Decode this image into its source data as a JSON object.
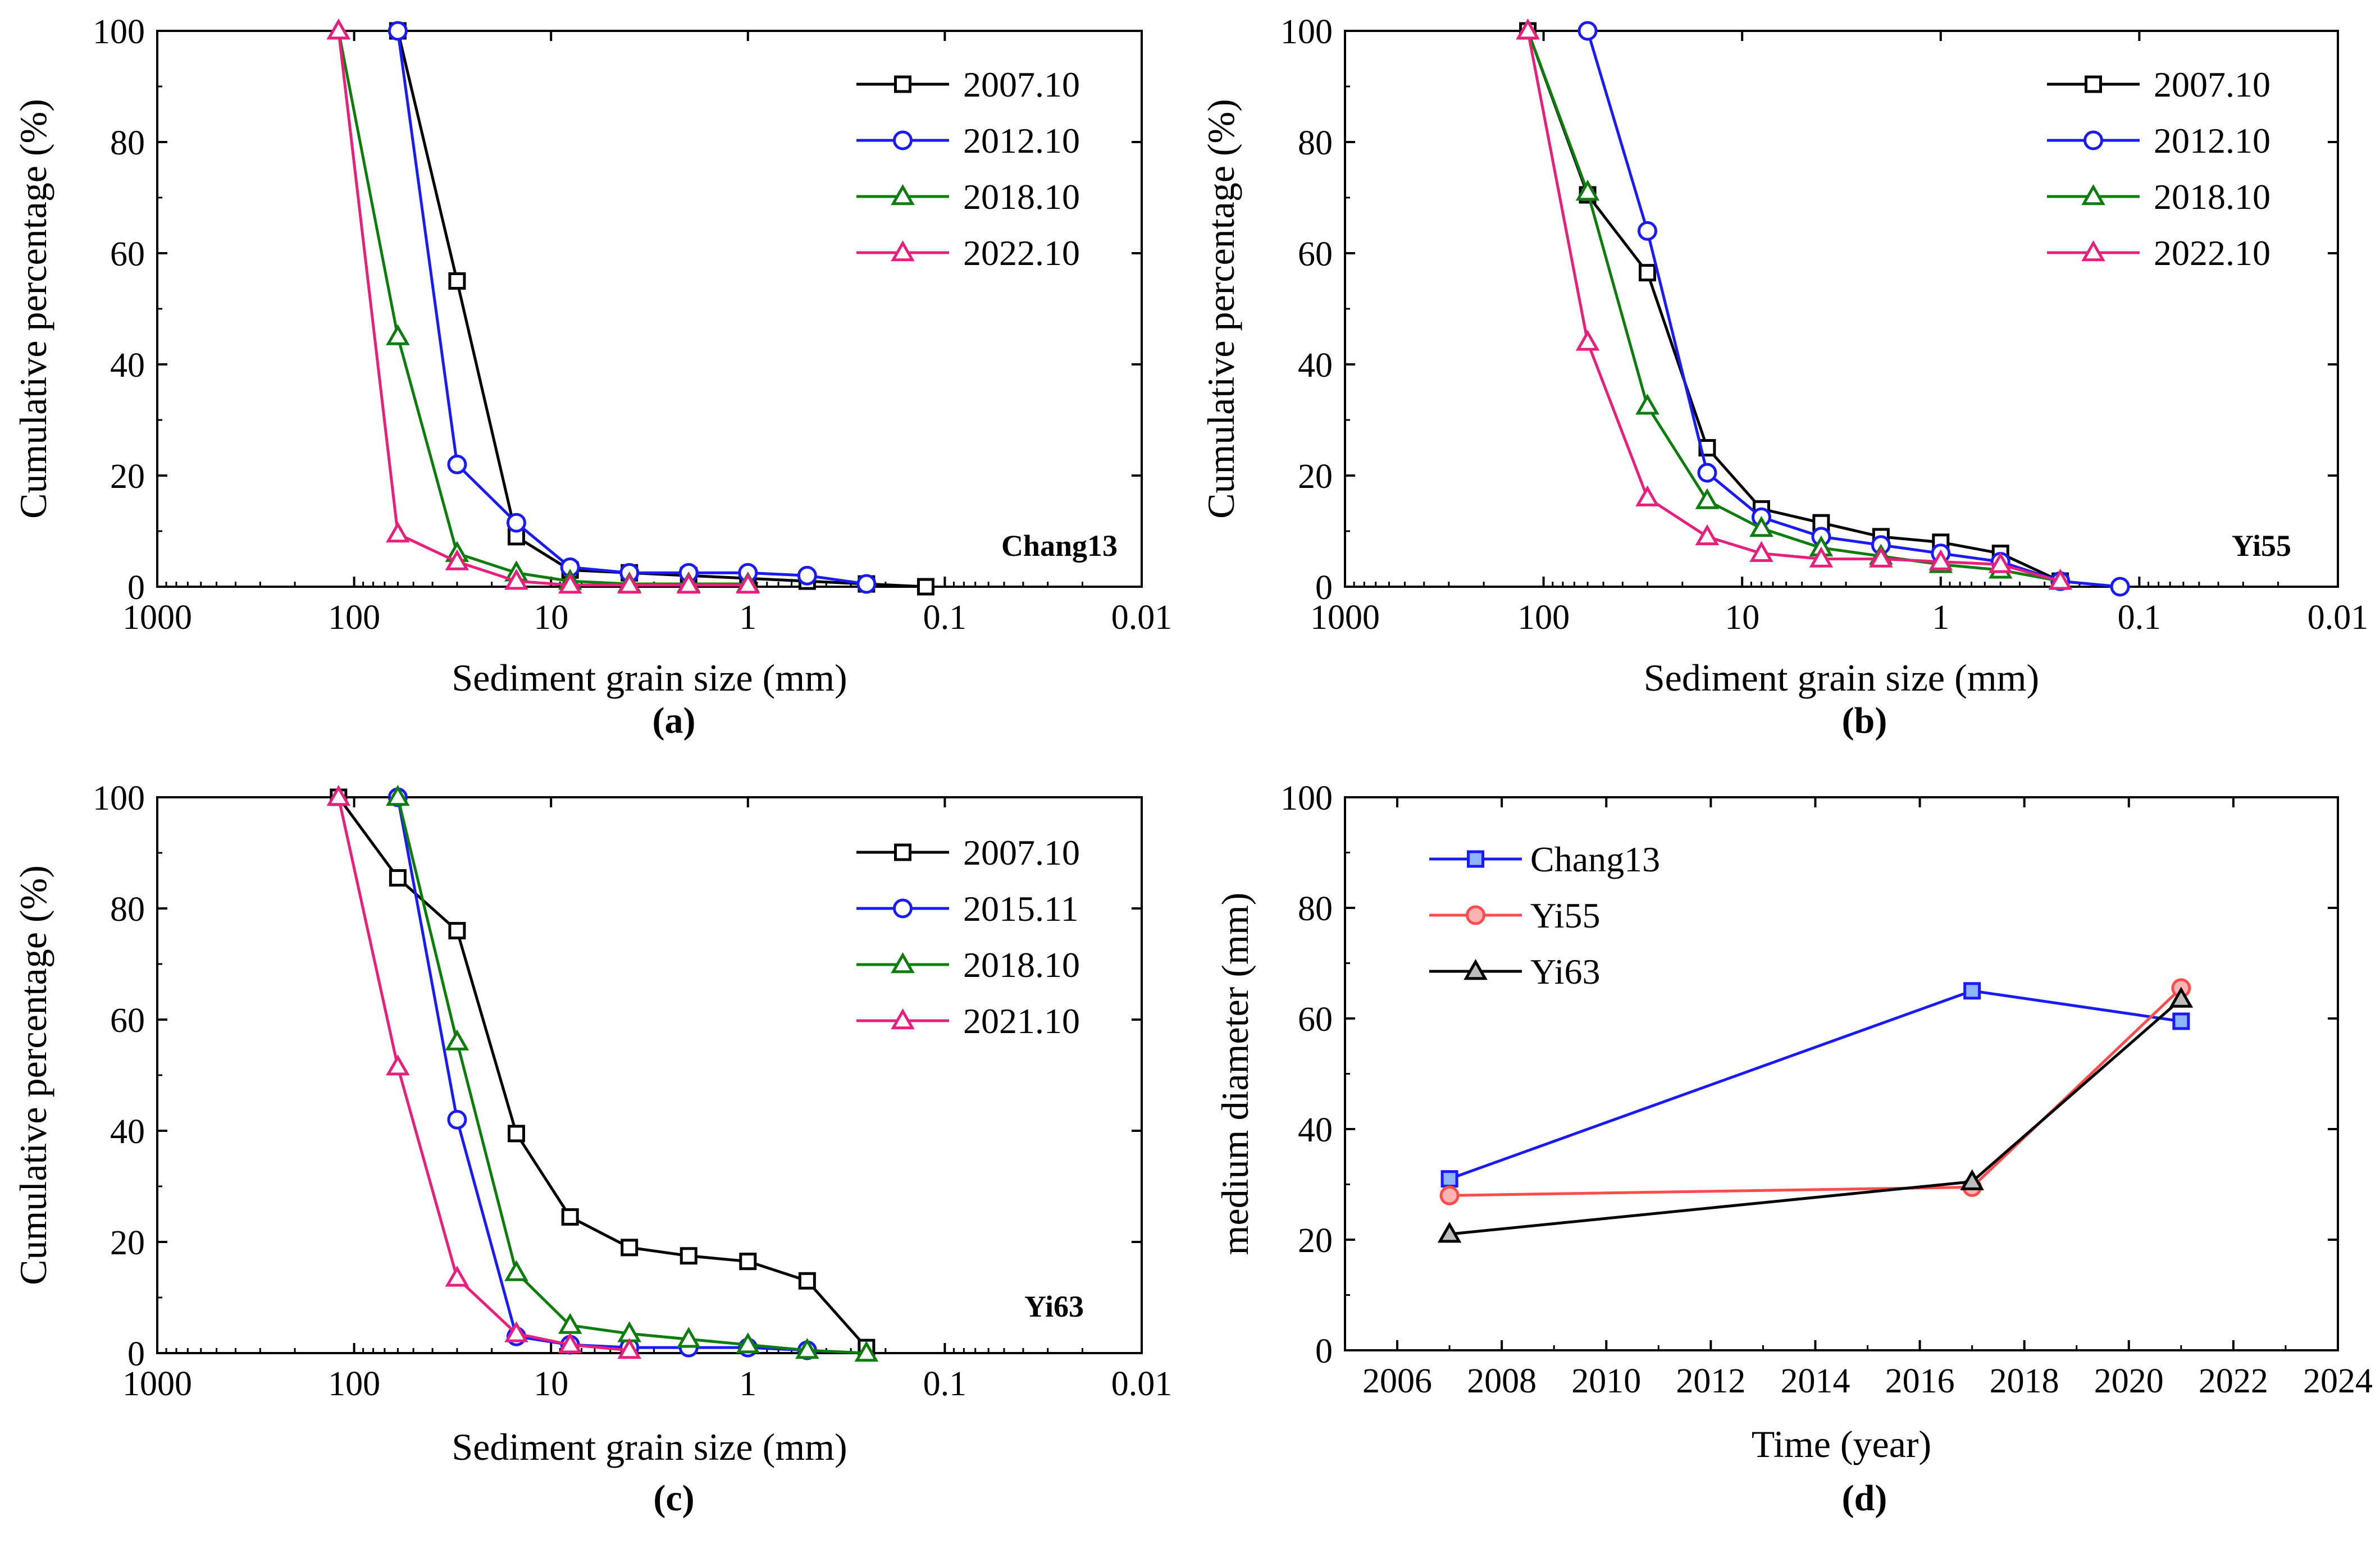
{
  "colors": {
    "black": "#000000",
    "blue": "#1a1aff",
    "green": "#0c7c0c",
    "pink": "#e8207c",
    "red": "#ff4d4d",
    "sq_fill_blue": "#8fb4ff",
    "circ_fill_red": "#ffb3b3",
    "tri_fill_gray": "#bdbdbd"
  },
  "chart_data": [
    {
      "id": "a",
      "type": "line",
      "panel_label": "(a)",
      "site": "Chang13",
      "xscale": "log",
      "x_reversed": true,
      "xlim": [
        1000,
        0.01
      ],
      "ylim": [
        0,
        100
      ],
      "xticks": [
        1000,
        100,
        10,
        1,
        0.1,
        0.01
      ],
      "xtick_labels": [
        "1000",
        "100",
        "10",
        "1",
        "0.1",
        "0.01"
      ],
      "yticks": [
        0,
        20,
        40,
        60,
        80,
        100
      ],
      "ytick_labels": [
        "0",
        "20",
        "40",
        "60",
        "80",
        "100"
      ],
      "xlabel": "Sediment grain size (mm)",
      "ylabel": "Cumulative percentage (%)",
      "legend_position": "top-right",
      "series": [
        {
          "name": "2007.10",
          "color": "#000000",
          "marker": "square",
          "x": [
            60,
            30,
            15,
            8,
            4,
            2,
            1,
            0.5,
            0.25,
            0.125
          ],
          "y": [
            100,
            55,
            9,
            3,
            2.5,
            2,
            1.5,
            1,
            0.5,
            0
          ]
        },
        {
          "name": "2012.10",
          "color": "#1a1aff",
          "marker": "circle",
          "x": [
            60,
            30,
            15,
            8,
            4,
            2,
            1,
            0.5,
            0.25
          ],
          "y": [
            100,
            22,
            11.5,
            3.5,
            2.5,
            2.5,
            2.5,
            2,
            0.5
          ]
        },
        {
          "name": "2018.10",
          "color": "#0c7c0c",
          "marker": "triangle",
          "x": [
            120,
            60,
            30,
            15,
            8,
            4,
            2,
            1
          ],
          "y": [
            100,
            45,
            6,
            2.5,
            1,
            0.5,
            0.5,
            0.5
          ]
        },
        {
          "name": "2022.10",
          "color": "#e8207c",
          "marker": "triangle",
          "x": [
            120,
            60,
            30,
            15,
            8,
            4,
            2,
            1
          ],
          "y": [
            100,
            9.5,
            4.5,
            1,
            0.3,
            0.3,
            0.3,
            0.3
          ]
        }
      ]
    },
    {
      "id": "b",
      "type": "line",
      "panel_label": "(b)",
      "site": "Yi55",
      "xscale": "log",
      "x_reversed": true,
      "xlim": [
        1000,
        0.01
      ],
      "ylim": [
        0,
        100
      ],
      "xticks": [
        1000,
        100,
        10,
        1,
        0.1,
        0.01
      ],
      "xtick_labels": [
        "1000",
        "100",
        "10",
        "1",
        "0.1",
        "0.01"
      ],
      "yticks": [
        0,
        20,
        40,
        60,
        80,
        100
      ],
      "ytick_labels": [
        "0",
        "20",
        "40",
        "60",
        "80",
        "100"
      ],
      "xlabel": "Sediment grain size (mm)",
      "ylabel": "Cumulative percentage (%)",
      "legend_position": "top-right",
      "series": [
        {
          "name": "2007.10",
          "color": "#000000",
          "marker": "square",
          "x": [
            120,
            60,
            30,
            15,
            8,
            4,
            2,
            1,
            0.5,
            0.25
          ],
          "y": [
            100,
            70.5,
            56.5,
            25,
            14,
            11.5,
            9,
            8,
            6,
            1
          ]
        },
        {
          "name": "2012.10",
          "color": "#1a1aff",
          "marker": "circle",
          "x": [
            60,
            30,
            15,
            8,
            4,
            2,
            1,
            0.5,
            0.25,
            0.125
          ],
          "y": [
            100,
            64,
            20.5,
            12.5,
            9,
            7.5,
            6,
            4.5,
            1,
            0
          ]
        },
        {
          "name": "2018.10",
          "color": "#0c7c0c",
          "marker": "triangle",
          "x": [
            120,
            60,
            30,
            15,
            8,
            4,
            2,
            1,
            0.5,
            0.25
          ],
          "y": [
            100,
            71,
            32.5,
            15.5,
            10.5,
            7,
            5.5,
            4,
            3,
            1
          ]
        },
        {
          "name": "2022.10",
          "color": "#e8207c",
          "marker": "triangle",
          "x": [
            120,
            60,
            30,
            15,
            8,
            4,
            2,
            1,
            0.5,
            0.25
          ],
          "y": [
            100,
            44,
            16,
            9,
            6,
            5,
            5,
            4.5,
            4,
            1
          ]
        }
      ]
    },
    {
      "id": "c",
      "type": "line",
      "panel_label": "(c)",
      "site": "Yi63",
      "xscale": "log",
      "x_reversed": true,
      "xlim": [
        1000,
        0.01
      ],
      "ylim": [
        0,
        100
      ],
      "xticks": [
        1000,
        100,
        10,
        1,
        0.1,
        0.01
      ],
      "xtick_labels": [
        "1000",
        "100",
        "10",
        "1",
        "0.1",
        "0.01"
      ],
      "yticks": [
        0,
        20,
        40,
        60,
        80,
        100
      ],
      "ytick_labels": [
        "0",
        "20",
        "40",
        "60",
        "80",
        "100"
      ],
      "xlabel": "Sediment grain size (mm)",
      "ylabel": "Cumulative percentage (%)",
      "legend_position": "top-right",
      "series": [
        {
          "name": "2007.10",
          "color": "#000000",
          "marker": "square",
          "x": [
            120,
            60,
            30,
            15,
            8,
            4,
            2,
            1,
            0.5,
            0.25
          ],
          "y": [
            100,
            85.5,
            76,
            39.5,
            24.5,
            19,
            17.5,
            16.5,
            13,
            1
          ]
        },
        {
          "name": "2015.11",
          "color": "#1a1aff",
          "marker": "circle",
          "x": [
            60,
            30,
            15,
            8,
            4,
            2,
            1,
            0.5
          ],
          "y": [
            100,
            42,
            3,
            1.5,
            1,
            1,
            1,
            0.5
          ]
        },
        {
          "name": "2018.10",
          "color": "#0c7c0c",
          "marker": "triangle",
          "x": [
            60,
            30,
            15,
            8,
            4,
            2,
            1,
            0.5,
            0.25
          ],
          "y": [
            100,
            56,
            14.5,
            5,
            3.5,
            2.5,
            1.5,
            0.5,
            0
          ]
        },
        {
          "name": "2021.10",
          "color": "#e8207c",
          "marker": "triangle",
          "x": [
            120,
            60,
            30,
            15,
            8,
            4
          ],
          "y": [
            100,
            51.5,
            13.5,
            3.5,
            1.5,
            0.5
          ]
        }
      ]
    },
    {
      "id": "d",
      "type": "line",
      "panel_label": "(d)",
      "xscale": "linear",
      "xlim": [
        2005,
        2024
      ],
      "ylim": [
        0,
        100
      ],
      "xticks": [
        2006,
        2008,
        2010,
        2012,
        2014,
        2016,
        2018,
        2020,
        2022,
        2024
      ],
      "xtick_labels": [
        "2006",
        "2008",
        "2010",
        "2012",
        "2014",
        "2016",
        "2018",
        "2020",
        "2022",
        "2024"
      ],
      "yticks": [
        0,
        20,
        40,
        60,
        80,
        100
      ],
      "ytick_labels": [
        "0",
        "20",
        "40",
        "60",
        "80",
        "100"
      ],
      "xlabel": "Time (year)",
      "ylabel": "medium diameter (mm)",
      "legend_position": "top-left",
      "series": [
        {
          "name": "Chang13",
          "color": "#1a1aff",
          "marker": "square",
          "fill": "#8fb4ff",
          "x": [
            2007,
            2017,
            2021
          ],
          "y": [
            31,
            65,
            59.5
          ]
        },
        {
          "name": "Yi55",
          "color": "#ff4d4d",
          "marker": "circle",
          "fill": "#ffb3b3",
          "x": [
            2007,
            2017,
            2021
          ],
          "y": [
            28,
            29.5,
            65.5
          ]
        },
        {
          "name": "Yi63",
          "color": "#000000",
          "marker": "triangle",
          "fill": "#bdbdbd",
          "x": [
            2007,
            2017,
            2021
          ],
          "y": [
            21,
            30.5,
            63.5
          ]
        }
      ]
    }
  ]
}
